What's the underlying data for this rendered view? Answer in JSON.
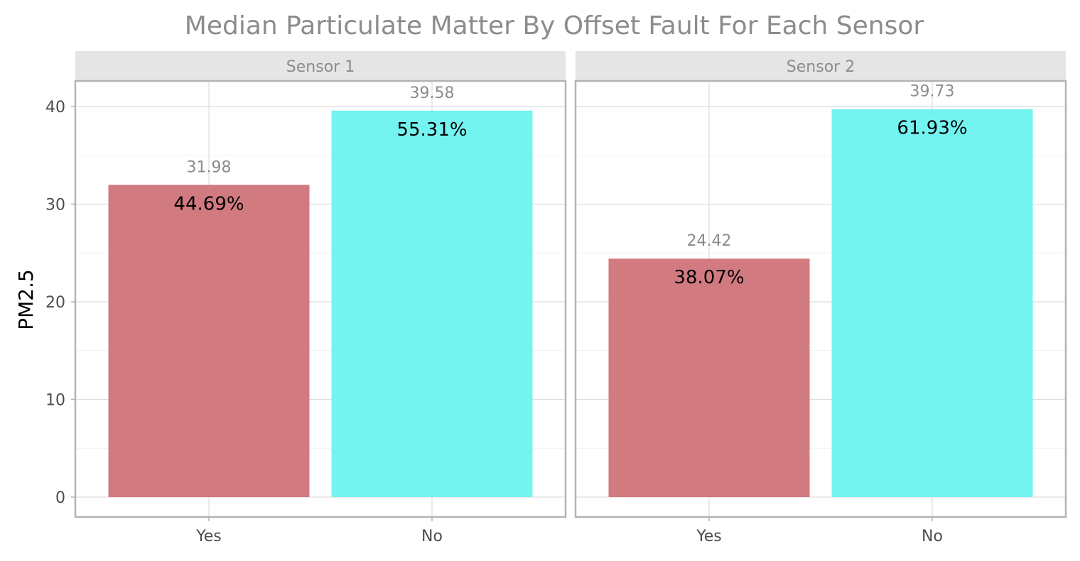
{
  "chart_data": {
    "type": "bar",
    "title": "Median Particulate Matter By Offset Fault For Each Sensor",
    "xlabel": "",
    "ylabel": "PM2.5",
    "ylim": [
      0,
      40
    ],
    "y_ticks": [
      0,
      10,
      20,
      30,
      40
    ],
    "categories": [
      "Yes",
      "No"
    ],
    "grid": true,
    "legend": "none",
    "colors": {
      "Yes": "#d17a80",
      "No": "#74f4f1"
    },
    "panels": [
      {
        "label": "Sensor 1",
        "values": [
          31.98,
          39.58
        ],
        "value_labels": [
          "31.98",
          "39.58"
        ],
        "percent_labels": [
          "44.69%",
          "55.31%"
        ]
      },
      {
        "label": "Sensor 2",
        "values": [
          24.42,
          39.73
        ],
        "value_labels": [
          "24.42",
          "39.73"
        ],
        "percent_labels": [
          "38.07%",
          "61.93%"
        ]
      }
    ]
  }
}
